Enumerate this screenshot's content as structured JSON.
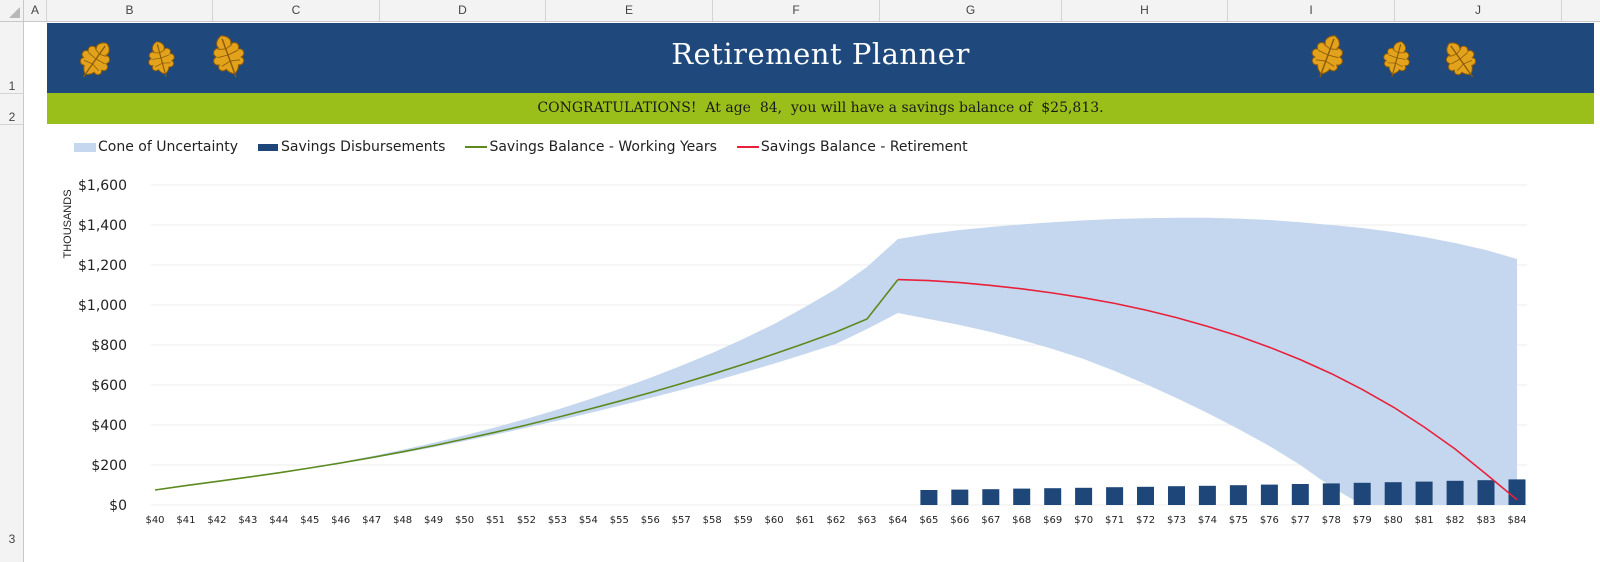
{
  "spreadsheet": {
    "columns": [
      "A",
      "B",
      "C",
      "D",
      "E",
      "F",
      "G",
      "H",
      "I",
      "J"
    ],
    "rows": [
      "1",
      "2",
      "3"
    ]
  },
  "banner": {
    "title": "Retirement Planner",
    "bg_color": "#1f497d",
    "leaf_icons": [
      "oak-leaf-icon",
      "oak-leaf-icon",
      "oak-leaf-icon",
      "oak-leaf-icon",
      "oak-leaf-icon",
      "oak-leaf-icon"
    ]
  },
  "congrats": {
    "text": "CONGRATULATIONS!  At age  84,  you will have a savings balance of  $25,813.",
    "bg_color": "#9bbf1a"
  },
  "legend": {
    "cone": "Cone of Uncertainty",
    "disbursements": "Savings Disbursements",
    "working": "Savings Balance - Working Years",
    "retirement": "Savings Balance - Retirement"
  },
  "colors": {
    "cone": "#c5d7ee",
    "disbursements": "#1f4678",
    "working": "#5c8a1e",
    "retirement": "#e8213a"
  },
  "chart_data": {
    "type": "line",
    "ylabel": "THOUSANDS",
    "ylim": [
      0,
      1600
    ],
    "ytick_step": 200,
    "ytick_labels": [
      "$0",
      "$200",
      "$400",
      "$600",
      "$800",
      "$1,000",
      "$1,200",
      "$1,400",
      "$1,600"
    ],
    "grid": true,
    "legend_position": "top-left",
    "categories": [
      "$40",
      "$41",
      "$42",
      "$43",
      "$44",
      "$45",
      "$46",
      "$47",
      "$48",
      "$49",
      "$50",
      "$51",
      "$52",
      "$53",
      "$54",
      "$55",
      "$56",
      "$57",
      "$58",
      "$59",
      "$60",
      "$61",
      "$62",
      "$63",
      "$64",
      "$65",
      "$66",
      "$67",
      "$68",
      "$69",
      "$70",
      "$71",
      "$72",
      "$73",
      "$74",
      "$75",
      "$76",
      "$77",
      "$78",
      "$79",
      "$80",
      "$81",
      "$82",
      "$83",
      "$84"
    ],
    "series": [
      {
        "name": "Savings Balance - Working Years",
        "kind": "line",
        "values": [
          75,
          97,
          118,
          139,
          161,
          185,
          210,
          237,
          266,
          297,
          330,
          364,
          400,
          438,
          478,
          519,
          562,
          607,
          654,
          703,
          755,
          809,
          865,
          930,
          1127,
          null,
          null,
          null,
          null,
          null,
          null,
          null,
          null,
          null,
          null,
          null,
          null,
          null,
          null,
          null,
          null,
          null,
          null,
          null,
          null
        ]
      },
      {
        "name": "Savings Balance - Retirement",
        "kind": "line",
        "values": [
          null,
          null,
          null,
          null,
          null,
          null,
          null,
          null,
          null,
          null,
          null,
          null,
          null,
          null,
          null,
          null,
          null,
          null,
          null,
          null,
          null,
          null,
          null,
          null,
          1127,
          1122,
          1112,
          1098,
          1081,
          1060,
          1036,
          1008,
          975,
          937,
          893,
          845,
          789,
          727,
          657,
          578,
          490,
          390,
          280,
          155,
          26
        ]
      },
      {
        "name": "Cone of Uncertainty",
        "kind": "area",
        "lower": [
          75,
          97,
          118,
          138,
          160,
          183,
          207,
          233,
          260,
          289,
          320,
          352,
          386,
          421,
          458,
          496,
          535,
          575,
          617,
          661,
          707,
          755,
          805,
          880,
          960,
          930,
          900,
          865,
          825,
          780,
          730,
          670,
          605,
          535,
          460,
          380,
          295,
          200,
          90,
          0,
          0,
          0,
          0,
          0,
          0
        ],
        "upper": [
          75,
          97,
          119,
          141,
          164,
          189,
          215,
          244,
          276,
          311,
          348,
          388,
          431,
          477,
          527,
          580,
          636,
          696,
          760,
          830,
          905,
          990,
          1080,
          1190,
          1330,
          1355,
          1375,
          1390,
          1403,
          1414,
          1423,
          1430,
          1434,
          1436,
          1436,
          1432,
          1425,
          1414,
          1400,
          1385,
          1365,
          1340,
          1310,
          1275,
          1230
        ]
      },
      {
        "name": "Savings Disbursements",
        "kind": "bar",
        "values": [
          null,
          null,
          null,
          null,
          null,
          null,
          null,
          null,
          null,
          null,
          null,
          null,
          null,
          null,
          null,
          null,
          null,
          null,
          null,
          null,
          null,
          null,
          null,
          null,
          null,
          75,
          77,
          79,
          82,
          84,
          86,
          89,
          91,
          94,
          96,
          99,
          102,
          105,
          108,
          111,
          114,
          117,
          121,
          124,
          128
        ]
      }
    ]
  }
}
